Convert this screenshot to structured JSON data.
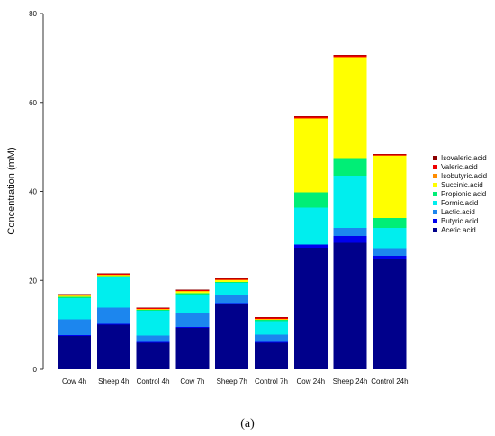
{
  "figure": {
    "caption": "(a)"
  },
  "chart_data": {
    "type": "bar",
    "stacked": true,
    "ylabel": "Concentration (mM)",
    "xlabel": "",
    "ylim": [
      0,
      80
    ],
    "yticks": [
      0,
      20,
      40,
      60,
      80
    ],
    "grid": false,
    "legend_placement": "right",
    "categories": [
      "Cow 4h",
      "Sheep 4h",
      "Control 4h",
      "Cow 7h",
      "Sheep 7h",
      "Control 7h",
      "Cow 24h",
      "Sheep  24h",
      "Control  24h"
    ],
    "series": [
      {
        "name": "Acetic.acid",
        "color": "#00008B",
        "values": [
          7.5,
          10.0,
          6.0,
          9.3,
          14.7,
          6.0,
          27.3,
          28.5,
          24.8
        ]
      },
      {
        "name": "Butyric.acid",
        "color": "#0000EE",
        "values": [
          0.2,
          0.2,
          0.2,
          0.2,
          0.2,
          0.2,
          0.8,
          1.5,
          0.7
        ]
      },
      {
        "name": "Lactic.acid",
        "color": "#1C86EE",
        "values": [
          3.5,
          3.7,
          1.4,
          3.3,
          1.8,
          1.6,
          0.0,
          1.8,
          1.7
        ]
      },
      {
        "name": "Formic.acid",
        "color": "#00EEEE",
        "values": [
          4.8,
          6.8,
          5.6,
          4.0,
          2.7,
          3.0,
          8.3,
          11.7,
          4.6
        ]
      },
      {
        "name": "Propionic.acid",
        "color": "#00EE76",
        "values": [
          0.3,
          0.3,
          0.2,
          0.3,
          0.2,
          0.3,
          3.4,
          4.0,
          2.2
        ]
      },
      {
        "name": "Succinic.acid",
        "color": "#FFFF00",
        "values": [
          0.2,
          0.2,
          0.1,
          0.4,
          0.5,
          0.1,
          16.5,
          22.6,
          14.0
        ]
      },
      {
        "name": "Isobutyric.acid",
        "color": "#FF8C00",
        "values": [
          0.1,
          0.1,
          0.1,
          0.1,
          0.1,
          0.1,
          0.2,
          0.2,
          0.1
        ]
      },
      {
        "name": "Valeric.acid",
        "color": "#EE0000",
        "values": [
          0.2,
          0.2,
          0.2,
          0.2,
          0.2,
          0.3,
          0.3,
          0.3,
          0.2
        ]
      },
      {
        "name": "Isovaleric.acid",
        "color": "#8B0000",
        "values": [
          0.1,
          0.1,
          0.1,
          0.1,
          0.1,
          0.1,
          0.1,
          0.1,
          0.1
        ]
      }
    ]
  }
}
